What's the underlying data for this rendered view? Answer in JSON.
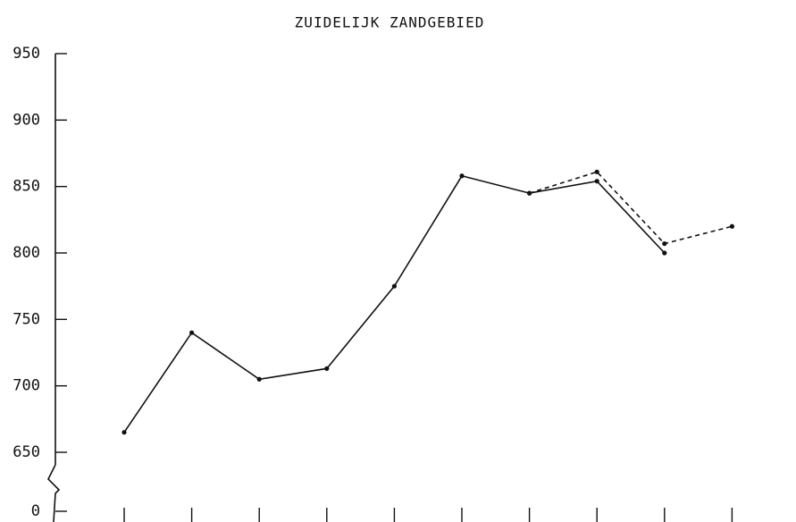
{
  "chart_data": {
    "type": "line",
    "title": "ZUIDELIJK ZANDGEBIED",
    "categories": [
      null,
      null,
      null,
      null,
      null,
      null,
      null,
      null,
      null,
      null
    ],
    "series": [
      {
        "color": "#111111",
        "dash": false,
        "values": [
          665,
          740,
          705,
          713,
          775,
          858,
          845,
          854,
          800,
          null
        ]
      },
      {
        "color": "#111111",
        "dash": true,
        "values": [
          null,
          null,
          null,
          null,
          null,
          null,
          845,
          861,
          807,
          820
        ]
      }
    ],
    "ylim": [
      650,
      950
    ],
    "yticks": [
      0,
      650,
      700,
      750,
      800,
      850,
      900,
      950
    ],
    "axis_break": [
      0,
      650
    ]
  }
}
